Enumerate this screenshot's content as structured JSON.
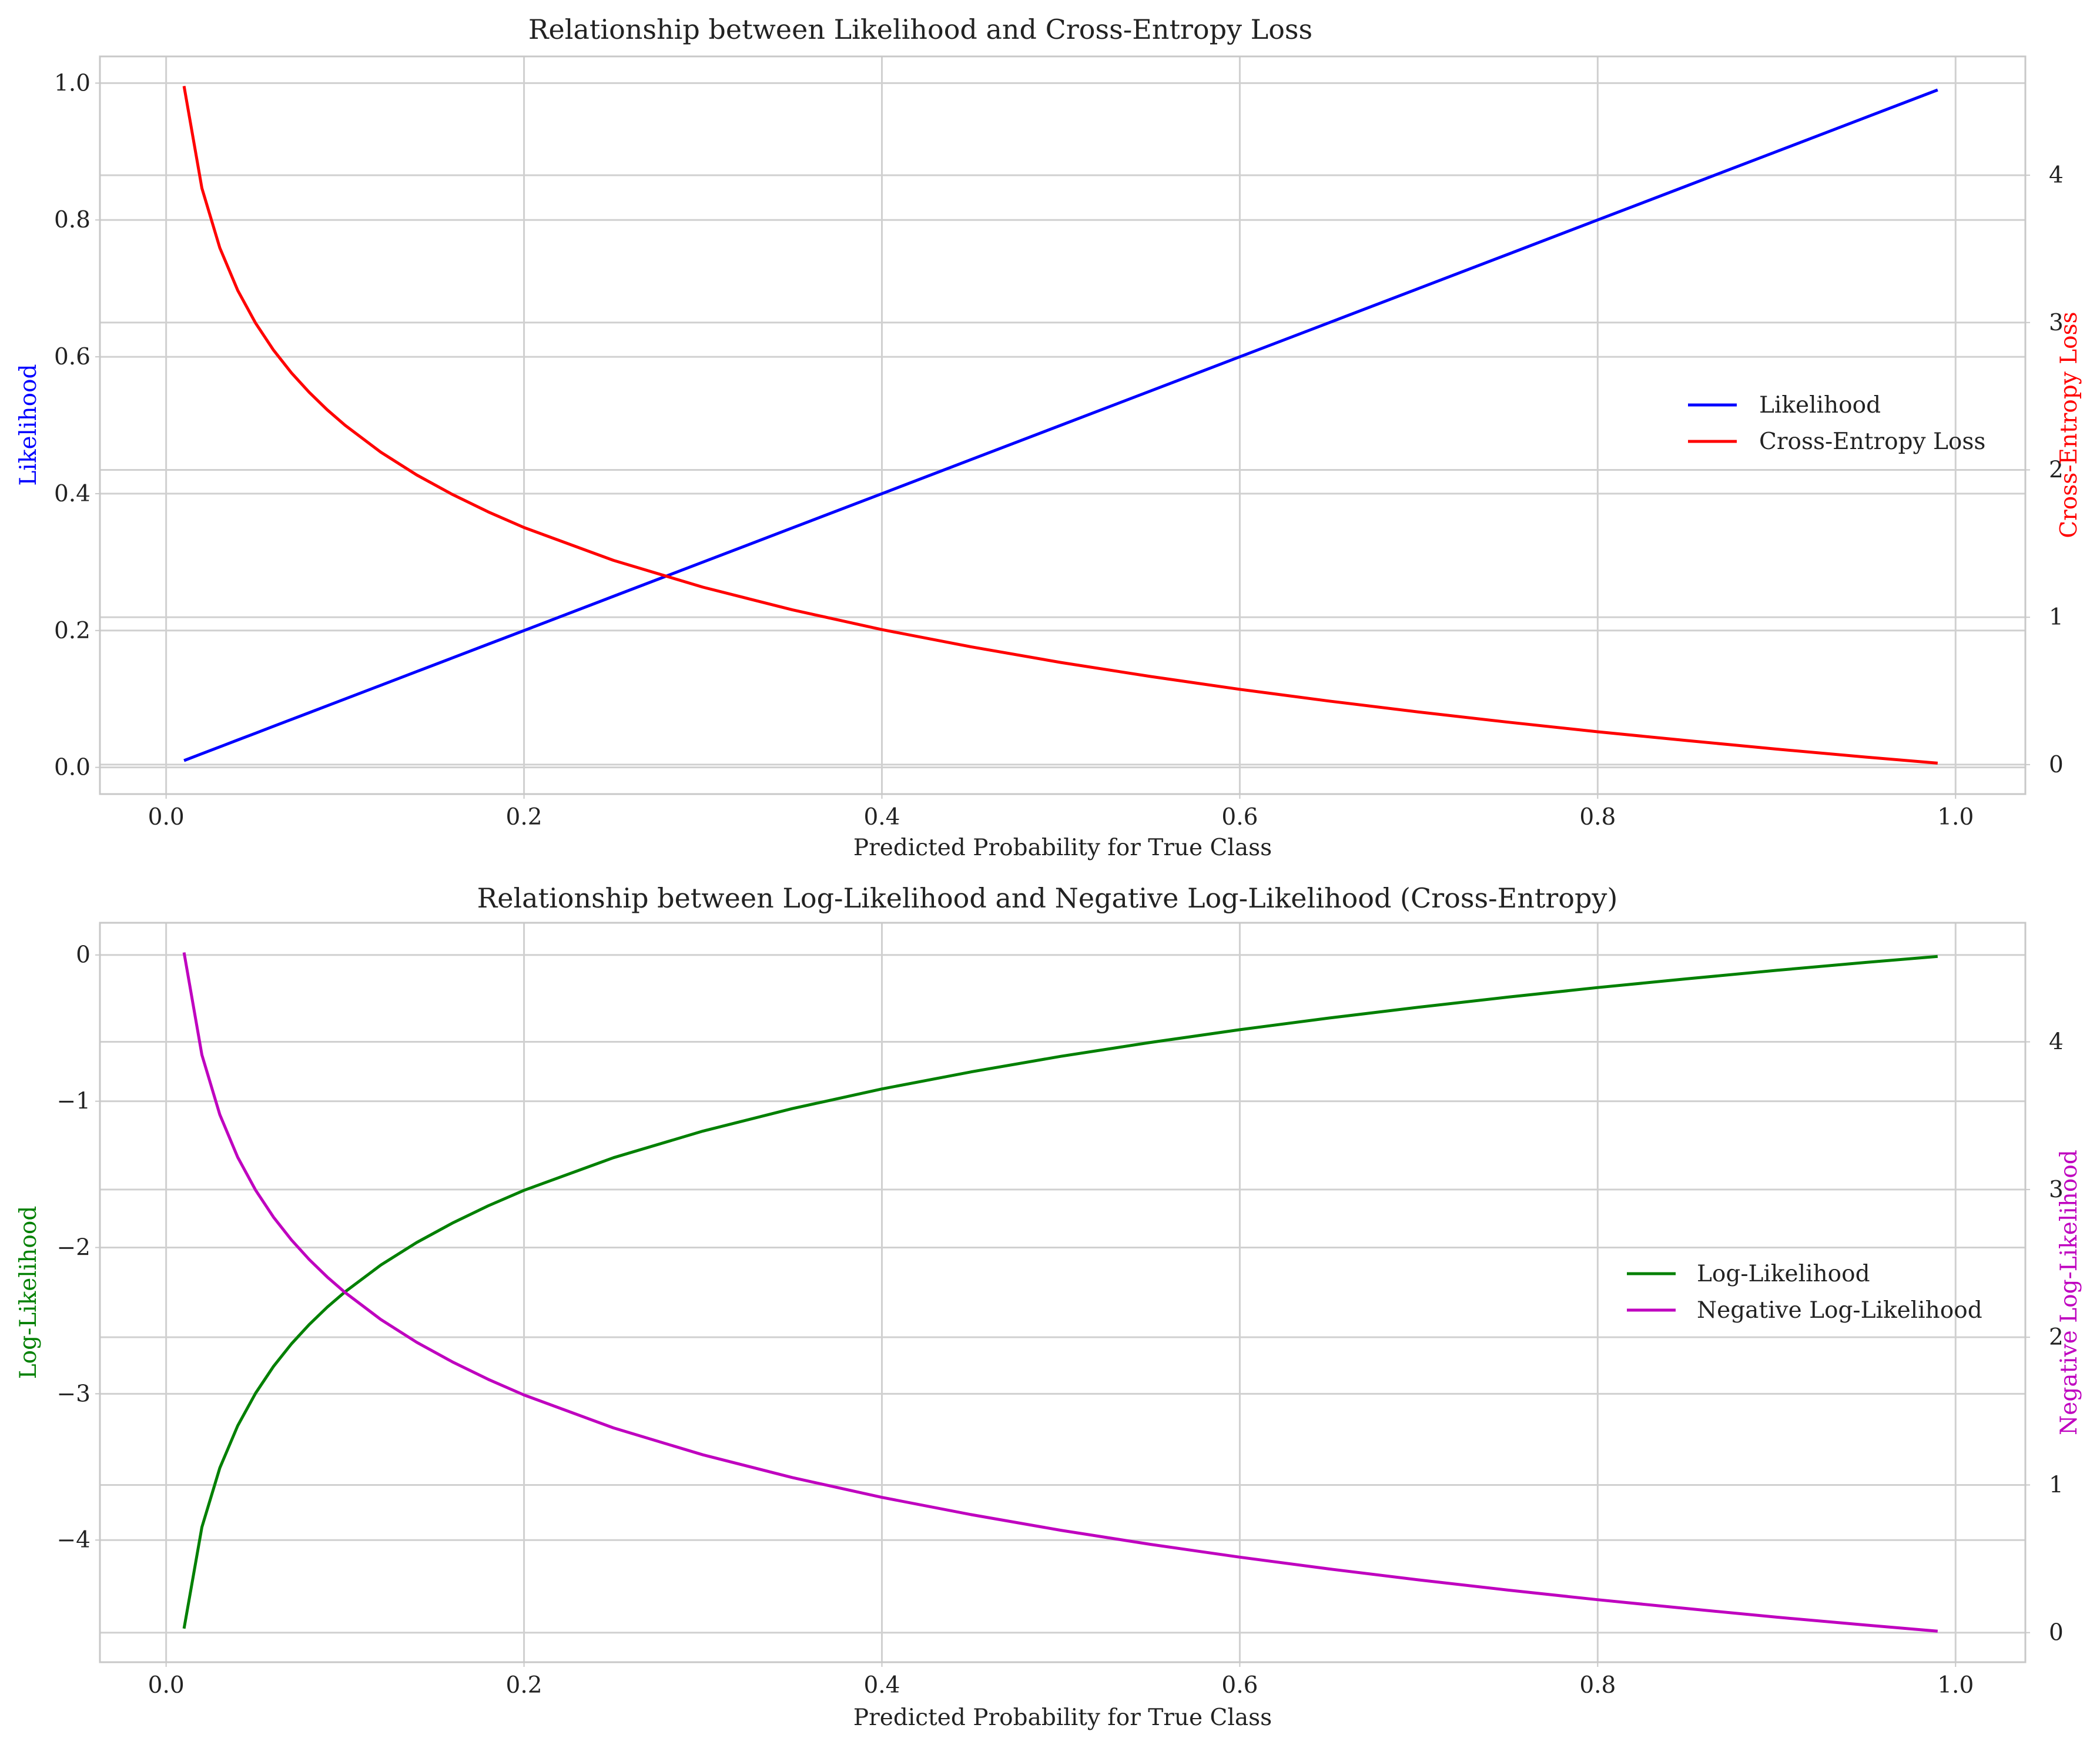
{
  "chart_data": [
    {
      "type": "line",
      "title": "Relationship between Likelihood and Cross-Entropy Loss",
      "xlabel": "Predicted Probability for True Class",
      "ylabel": "Likelihood",
      "y2label": "Cross-Entropy Loss",
      "xlim": [
        -0.037,
        1.039
      ],
      "ylim": [
        -0.039,
        1.039
      ],
      "y2lim": [
        -0.2,
        4.806
      ],
      "xticks": [
        0.0,
        0.2,
        0.4,
        0.6,
        0.8,
        1.0
      ],
      "xtick_labels": [
        "0.0",
        "0.2",
        "0.4",
        "0.6",
        "0.8",
        "1.0"
      ],
      "yticks": [
        0.0,
        0.2,
        0.4,
        0.6,
        0.8,
        1.0
      ],
      "ytick_labels": [
        "0.0",
        "0.2",
        "0.4",
        "0.6",
        "0.8",
        "1.0"
      ],
      "y2ticks": [
        0,
        1,
        2,
        3,
        4
      ],
      "y2tick_labels": [
        "0",
        "1",
        "2",
        "3",
        "4"
      ],
      "grid": true,
      "legend_position": "center-right",
      "x": [
        0.01,
        0.02,
        0.03,
        0.04,
        0.05,
        0.06,
        0.07,
        0.08,
        0.09,
        0.1,
        0.12,
        0.14,
        0.16,
        0.18,
        0.2,
        0.25,
        0.3,
        0.35,
        0.4,
        0.45,
        0.5,
        0.55,
        0.6,
        0.65,
        0.7,
        0.75,
        0.8,
        0.85,
        0.9,
        0.95,
        0.99
      ],
      "series": [
        {
          "name": "Likelihood",
          "axis": "left",
          "color": "#0000ff",
          "values": [
            0.01,
            0.02,
            0.03,
            0.04,
            0.05,
            0.06,
            0.07,
            0.08,
            0.09,
            0.1,
            0.12,
            0.14,
            0.16,
            0.18,
            0.2,
            0.25,
            0.3,
            0.35,
            0.4,
            0.45,
            0.5,
            0.55,
            0.6,
            0.65,
            0.7,
            0.75,
            0.8,
            0.85,
            0.9,
            0.95,
            0.99
          ]
        },
        {
          "name": "Cross-Entropy Loss",
          "axis": "right",
          "color": "#ff0000",
          "values": [
            4.605,
            3.912,
            3.507,
            3.219,
            2.996,
            2.813,
            2.659,
            2.526,
            2.408,
            2.303,
            2.12,
            1.966,
            1.833,
            1.715,
            1.609,
            1.386,
            1.204,
            1.05,
            0.916,
            0.799,
            0.693,
            0.598,
            0.511,
            0.431,
            0.357,
            0.288,
            0.223,
            0.163,
            0.105,
            0.051,
            0.01
          ]
        }
      ]
    },
    {
      "type": "line",
      "title": "Relationship between Log-Likelihood and Negative Log-Likelihood (Cross-Entropy)",
      "xlabel": "Predicted Probability for True Class",
      "ylabel": "Log-Likelihood",
      "y2label": "Negative Log-Likelihood",
      "xlim": [
        -0.037,
        1.039
      ],
      "ylim": [
        -4.835,
        0.22
      ],
      "y2lim": [
        -0.2,
        4.806
      ],
      "xticks": [
        0.0,
        0.2,
        0.4,
        0.6,
        0.8,
        1.0
      ],
      "xtick_labels": [
        "0.0",
        "0.2",
        "0.4",
        "0.6",
        "0.8",
        "1.0"
      ],
      "yticks": [
        0,
        -1,
        -2,
        -3,
        -4
      ],
      "ytick_labels": [
        "0",
        "−1",
        "−2",
        "−3",
        "−4"
      ],
      "y2ticks": [
        0,
        1,
        2,
        3,
        4
      ],
      "y2tick_labels": [
        "0",
        "1",
        "2",
        "3",
        "4"
      ],
      "grid": true,
      "legend_position": "center-right",
      "x": [
        0.01,
        0.02,
        0.03,
        0.04,
        0.05,
        0.06,
        0.07,
        0.08,
        0.09,
        0.1,
        0.12,
        0.14,
        0.16,
        0.18,
        0.2,
        0.25,
        0.3,
        0.35,
        0.4,
        0.45,
        0.5,
        0.55,
        0.6,
        0.65,
        0.7,
        0.75,
        0.8,
        0.85,
        0.9,
        0.95,
        0.99
      ],
      "series": [
        {
          "name": "Log-Likelihood",
          "axis": "left",
          "color": "#008000",
          "values": [
            -4.605,
            -3.912,
            -3.507,
            -3.219,
            -2.996,
            -2.813,
            -2.659,
            -2.526,
            -2.408,
            -2.303,
            -2.12,
            -1.966,
            -1.833,
            -1.715,
            -1.609,
            -1.386,
            -1.204,
            -1.05,
            -0.916,
            -0.799,
            -0.693,
            -0.598,
            -0.511,
            -0.431,
            -0.357,
            -0.288,
            -0.223,
            -0.163,
            -0.105,
            -0.051,
            -0.01
          ]
        },
        {
          "name": "Negative Log-Likelihood",
          "axis": "right",
          "color": "#bf00bf",
          "values": [
            4.605,
            3.912,
            3.507,
            3.219,
            2.996,
            2.813,
            2.659,
            2.526,
            2.408,
            2.303,
            2.12,
            1.966,
            1.833,
            1.715,
            1.609,
            1.386,
            1.204,
            1.05,
            0.916,
            0.799,
            0.693,
            0.598,
            0.511,
            0.431,
            0.357,
            0.288,
            0.223,
            0.163,
            0.105,
            0.051,
            0.01
          ]
        }
      ]
    }
  ]
}
